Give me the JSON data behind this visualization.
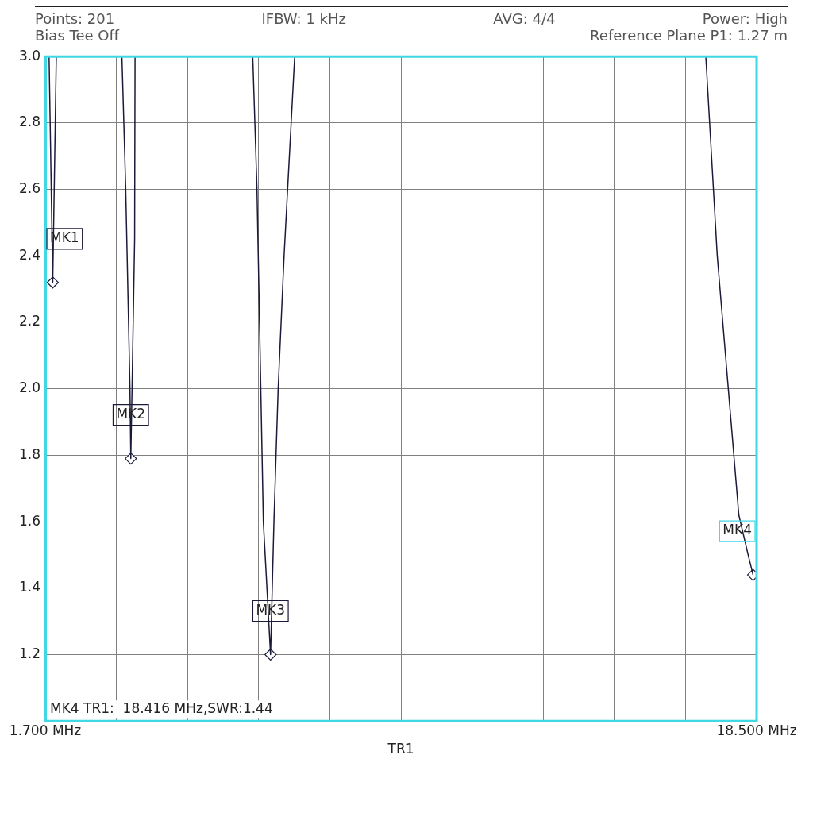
{
  "chart_data": {
    "type": "line",
    "xlabel": "TR1",
    "annotations": [
      "Points: 201",
      "IFBW: 1 kHz",
      "AVG: 4/4",
      "Power: High",
      "Bias Tee Off",
      "Reference Plane P1: 1.27 m",
      {
        "text": "MK1",
        "x": 1.876,
        "y": 2.32
      },
      {
        "text": "MK2",
        "x": 3.72,
        "y": 1.79
      },
      {
        "text": "MK3",
        "x": 7.02,
        "y": 1.2
      },
      {
        "text": "MK4",
        "x": 18.416,
        "y": 1.44
      },
      "MK4 TR1:  18.416 MHz,SWR:1.44"
    ],
    "series": [
      {
        "type": "line",
        "color": "#1a1a3a",
        "x": [
          1.79,
          1.876,
          1.96,
          null,
          3.51,
          3.6,
          3.7,
          3.72,
          3.81,
          3.82,
          null,
          6.6,
          6.7,
          6.76,
          6.85,
          7.02,
          7.1,
          7.2,
          7.34,
          7.59,
          null,
          17.3,
          17.57,
          18.08,
          18.3,
          18.416
        ],
        "values": [
          3.0,
          2.32,
          3.0,
          null,
          3.0,
          2.6,
          2.0,
          1.79,
          2.45,
          3.0,
          null,
          3.0,
          2.6,
          2.2,
          1.6,
          1.2,
          1.6,
          2.0,
          2.4,
          3.0,
          null,
          3.0,
          2.4,
          1.62,
          1.5,
          1.44
        ]
      },
      {
        "type": "scatter",
        "color": "#1a1a3a",
        "marker": "diamond",
        "x": [
          1.876,
          3.72,
          7.02,
          18.416
        ],
        "values": [
          2.32,
          1.79,
          1.2,
          1.44
        ]
      }
    ],
    "xlim": [
      1.7,
      18.5
    ],
    "xticks": [
      {
        "value": 1.7,
        "label": "1.700 MHz"
      },
      {
        "value": 3.38,
        "label": null
      },
      {
        "value": 5.06,
        "label": null
      },
      {
        "value": 6.74,
        "label": null
      },
      {
        "value": 8.42,
        "label": null
      },
      {
        "value": 10.1,
        "label": null
      },
      {
        "value": 11.78,
        "label": null
      },
      {
        "value": 13.46,
        "label": null
      },
      {
        "value": 15.14,
        "label": null
      },
      {
        "value": 16.82,
        "label": null
      },
      {
        "value": 18.5,
        "label": "18.500 MHz"
      }
    ],
    "ylim": [
      1.0,
      3.0
    ],
    "yticks": [
      {
        "value": 1.0,
        "label": null
      },
      1.2,
      1.4,
      1.6,
      1.8,
      {
        "value": 2.0,
        "label": "2.0"
      },
      2.2,
      2.4,
      2.6,
      2.8,
      {
        "value": 3.0,
        "label": "3.0"
      }
    ],
    "grid": true,
    "legend": false
  }
}
